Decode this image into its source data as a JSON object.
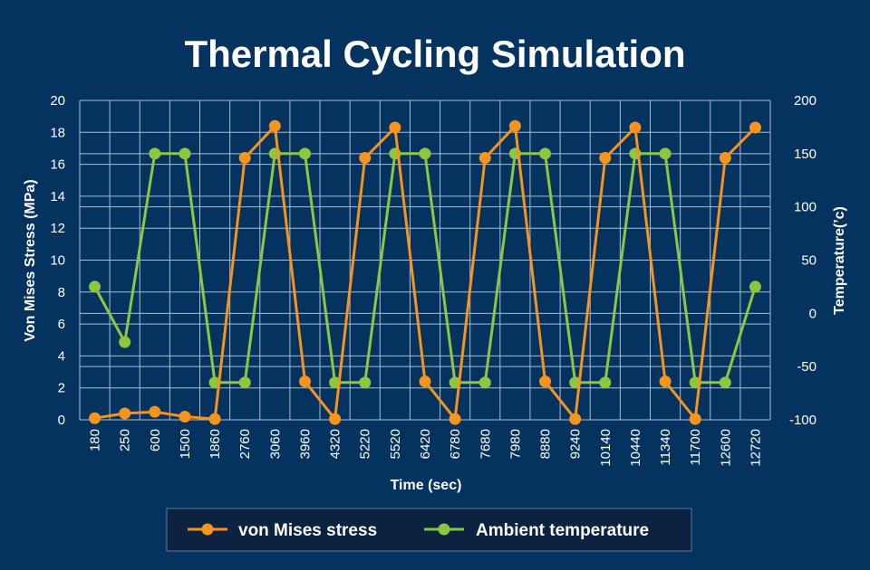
{
  "chart_data": {
    "type": "line",
    "title": "Thermal Cycling Simulation",
    "xlabel": "Time  (sec)",
    "ylabel_left": "Von Mises Stress (MPa)",
    "ylabel_right": "Temperature(’c)",
    "categories": [
      "180",
      "250",
      "600",
      "1500",
      "1860",
      "2760",
      "3060",
      "3960",
      "4320",
      "5220",
      "5520",
      "6420",
      "6780",
      "7680",
      "7980",
      "8880",
      "9240",
      "10140",
      "10440",
      "11340",
      "11700",
      "12600",
      "12720"
    ],
    "y_left": {
      "min": 0,
      "max": 20,
      "step": 2,
      "ticks": [
        "0",
        "2",
        "4",
        "6",
        "8",
        "10",
        "12",
        "14",
        "16",
        "18",
        "20"
      ]
    },
    "y_right": {
      "min": -100,
      "max": 200,
      "step": 50,
      "ticks": [
        "-100",
        "-50",
        "0",
        "50",
        "100",
        "150",
        "200"
      ]
    },
    "grid": true,
    "legend_position": "bottom-center",
    "series": [
      {
        "name": "von Mises stress",
        "axis": "left",
        "color": "#f7941d",
        "values": [
          0.1,
          0.4,
          0.5,
          0.2,
          0.05,
          16.4,
          18.4,
          2.4,
          0.05,
          16.4,
          18.3,
          2.4,
          0.05,
          16.4,
          18.4,
          2.4,
          0.05,
          16.4,
          18.3,
          2.4,
          0.05,
          16.4,
          18.3
        ]
      },
      {
        "name": "Ambient temperature",
        "axis": "right",
        "color": "#8dc63f",
        "values": [
          25,
          -27,
          150,
          150,
          -65,
          -65,
          150,
          150,
          -65,
          -65,
          150,
          150,
          -65,
          -65,
          150,
          150,
          -65,
          -65,
          150,
          150,
          -65,
          -65,
          25
        ]
      }
    ],
    "colors": {
      "background": "#05335f",
      "grid": "#a9bdd3",
      "legend_bg": "#0b2240",
      "legend_border": "#5c7a98"
    }
  }
}
